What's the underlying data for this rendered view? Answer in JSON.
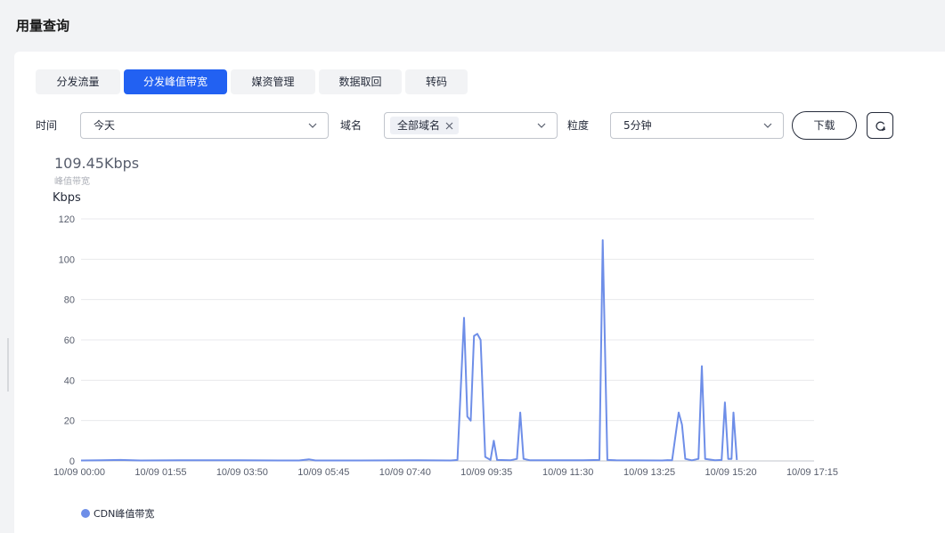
{
  "page": {
    "title": "用量查询"
  },
  "tabs": [
    {
      "label": "分发流量",
      "active": false
    },
    {
      "label": "分发峰值带宽",
      "active": true
    },
    {
      "label": "媒资管理",
      "active": false
    },
    {
      "label": "数据取回",
      "active": false
    },
    {
      "label": "转码",
      "active": false
    }
  ],
  "filters": {
    "time_label": "时间",
    "time_value": "今天",
    "domain_label": "域名",
    "domain_tag": "全部域名",
    "granularity_label": "粒度",
    "granularity_value": "5分钟",
    "download_label": "下载"
  },
  "summary": {
    "peak_value": "109.45Kbps",
    "peak_label": "峰值带宽",
    "unit": "Kbps"
  },
  "legend": {
    "label": "CDN峰值带宽"
  },
  "colors": {
    "accent": "#2261f2",
    "series": "#6e8ee8",
    "grid": "#e8e9ec"
  },
  "chart_data": {
    "type": "line",
    "ylabel": "Kbps",
    "ylim": [
      0,
      120
    ],
    "yticks": [
      0,
      20,
      40,
      60,
      80,
      100,
      120
    ],
    "x_ticks": [
      "10/09 00:00",
      "10/09 01:55",
      "10/09 03:50",
      "10/09 05:45",
      "10/09 07:40",
      "10/09 09:35",
      "10/09 11:30",
      "10/09 13:25",
      "10/09 15:20",
      "10/09 17:15"
    ],
    "x_range_minutes": [
      0,
      1110
    ],
    "series": [
      {
        "name": "CDN峰值带宽",
        "points": [
          [
            0,
            0.2
          ],
          [
            30,
            0.3
          ],
          [
            60,
            0.5
          ],
          [
            90,
            0.2
          ],
          [
            150,
            0.3
          ],
          [
            240,
            0.3
          ],
          [
            300,
            0.2
          ],
          [
            330,
            0.2
          ],
          [
            345,
            0.8
          ],
          [
            355,
            0.2
          ],
          [
            420,
            0.2
          ],
          [
            510,
            0.3
          ],
          [
            560,
            0.2
          ],
          [
            570,
            0.5
          ],
          [
            580,
            71
          ],
          [
            585,
            22
          ],
          [
            590,
            20
          ],
          [
            595,
            62
          ],
          [
            600,
            63
          ],
          [
            605,
            60
          ],
          [
            612,
            2
          ],
          [
            620,
            0.5
          ],
          [
            625,
            10
          ],
          [
            630,
            0.5
          ],
          [
            650,
            0.3
          ],
          [
            660,
            1
          ],
          [
            665,
            24
          ],
          [
            670,
            1
          ],
          [
            680,
            0.3
          ],
          [
            760,
            0.3
          ],
          [
            785,
            0.5
          ],
          [
            790,
            109.45
          ],
          [
            797,
            0.5
          ],
          [
            810,
            0.3
          ],
          [
            880,
            0.2
          ],
          [
            888,
            0.4
          ],
          [
            895,
            0.3
          ],
          [
            905,
            24
          ],
          [
            910,
            18
          ],
          [
            915,
            1
          ],
          [
            925,
            0.3
          ],
          [
            935,
            1
          ],
          [
            940,
            47
          ],
          [
            945,
            1
          ],
          [
            960,
            0.3
          ],
          [
            970,
            0.5
          ],
          [
            975,
            29
          ],
          [
            980,
            1
          ],
          [
            985,
            1
          ],
          [
            988,
            24
          ],
          [
            993,
            0.5
          ]
        ]
      }
    ],
    "grid": true,
    "legend_position": "bottom-left"
  }
}
